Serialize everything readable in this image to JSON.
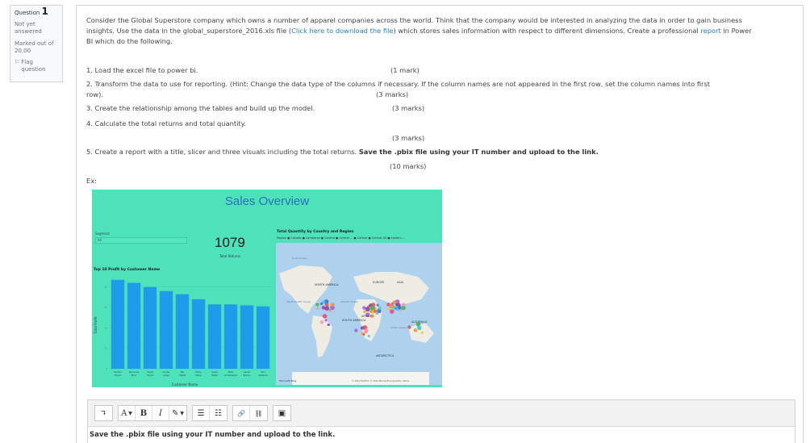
{
  "question_info": {
    "label": "Question",
    "number": "1",
    "state": "Not yet answered",
    "grade": "Marked out of 20.00",
    "flag_label": "Flag question"
  },
  "question": {
    "intro_1": "Consider the Global Superstore company which owns a number of apparel companies across the world. Think that the company would be interested in analyzing the data in order to gain business",
    "intro_2a": "insights. Use the data in the global_superstore_2016.xls file (",
    "intro_link": "Click here to download the file",
    "intro_2b": ") which stores sales information with respect to different dimensions. Create a professional",
    "intro_report": "report",
    "intro_2c": "in Power",
    "intro_3": "BI which do the following.",
    "task1": "1. Load the excel file to power bi.",
    "task1_marks": "(1 mark)",
    "task2": "2. Transform the data to use for reporting. (Hint: Change the data type of the columns if necessary. If the column names are not appeared in the first row, set the column names into first",
    "task2_cont": "row).",
    "task2_marks": "(3 marks)",
    "task3": "3. Create the relationship among the tables and build up the model.",
    "task3_marks": "(3 marks)",
    "task4": "4. Calculate the total returns and total quantity.",
    "task4_marks": "(3 marks)",
    "task5": "5. Create a report with a title, slicer and three visuals including the total returns.",
    "task5_bold": "Save the .pbix file using your IT number and upload to the link.",
    "task5_marks": "(10 marks)",
    "example_label": "Ex:"
  },
  "dashboard": {
    "title": "Sales Overview",
    "segment_label": "Segment",
    "segment_value": "All",
    "kpi_value": "1079",
    "kpi_label": "Total Returns",
    "map_title": "Total Quantity by Country and Region",
    "map_legend": "Region  ● Canada  ● Caribbean  ● Central  ● Central ...  ● Central  ● Central US  ● Eastern ...",
    "map_labels": {
      "north_america": "NORTH AMERICA",
      "europe": "EUROPE",
      "asia": "ASIA",
      "south_america": "SOUTH AMERICA",
      "africa": "AFRICA",
      "australia": "AUSTRALIA",
      "antarctica": "ANTARCTICA",
      "arctic_ocean": "Arctic Ocean",
      "north_pacific": "North Pacific Ocean",
      "atlantic": "Atlantic Ocean",
      "indian": "Indian Ocean",
      "microsoft_bing": "Microsoft Bing",
      "copyright": "© 2021 TomTom, © 2021 Microsoft Corporation, Terms"
    }
  },
  "chart_data": {
    "type": "bar",
    "title": "Top 10 Profit by Customer Name",
    "xlabel": "Customer Name",
    "ylabel": "Total Profit",
    "categories": [
      "Tamara Chand",
      "Raymond Buch",
      "Sanjit Chand",
      "Hunter Lopez",
      "Bill Eplett",
      "Harry Marie",
      "Susan Pistek",
      "Mike Gockenbach",
      "Adrian Barton",
      "Tom Ashbrook"
    ],
    "values": [
      8700,
      8400,
      8000,
      7600,
      7300,
      6800,
      6300,
      6300,
      6200,
      6100
    ],
    "ylim": [
      0,
      9000
    ],
    "ytick_values": [
      0,
      2000,
      4000,
      6000,
      8000
    ],
    "bar_color": "#1e9be9"
  },
  "editor": {
    "tools": {
      "paragraph": "↴",
      "font": "A",
      "bold": "B",
      "italic": "I",
      "brush": "✎",
      "bullets": "☰",
      "numbers": "☷",
      "link": "🔗",
      "unlink": "⛓",
      "image": "▣"
    },
    "content": "Save the .pbix file using your IT number and upload to the link."
  }
}
